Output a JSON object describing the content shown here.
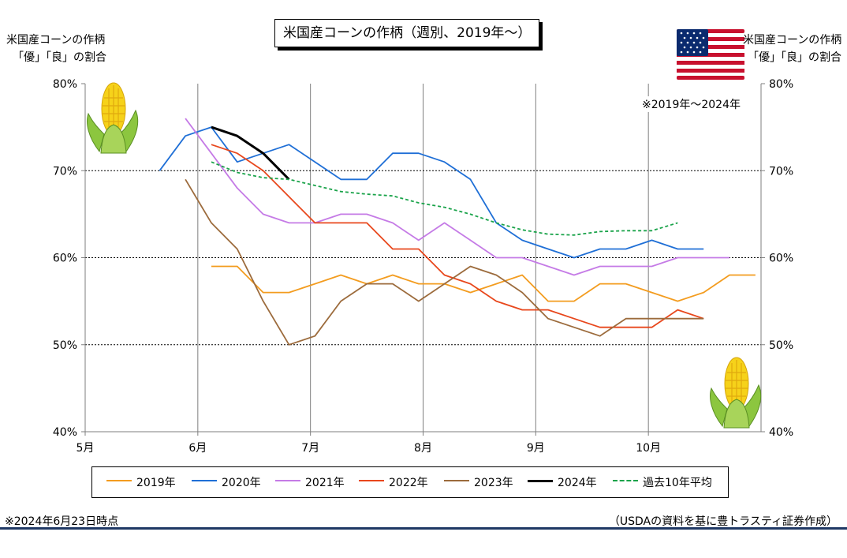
{
  "title": "米国産コーンの作柄（週別、2019年～）",
  "y_axis_title_left": [
    "米国産コーンの作柄",
    "「優」「良」の割合"
  ],
  "y_axis_title_right": [
    "米国産コーンの作柄",
    "「優」「良」の割合"
  ],
  "note_range": "※2019年～2024年",
  "footer_left": "※2024年6月23日時点",
  "footer_right": "（USDAの資料を基に豊トラスティ証券作成）",
  "colors": {
    "2019年": "#f39c1f",
    "2020年": "#1f6fd6",
    "2021年": "#c57be6",
    "2022年": "#e8471c",
    "2023年": "#9c6b3c",
    "2024年": "#000000",
    "過去10年平均": "#1aa34a"
  },
  "icons": [
    "corn-icon",
    "us-flag-icon"
  ],
  "chart_data": {
    "type": "line",
    "title": "米国産コーンの作柄（週別、2019年～）",
    "ylabel": "米国産コーンの作柄「優」「良」の割合",
    "xlabel": "",
    "x_unit": "month (5 = May 1, 5.5 = mid-May)",
    "xlim": [
      5,
      11
    ],
    "ylim": [
      40,
      80
    ],
    "x_ticks": [
      {
        "x": 5,
        "label": "5月"
      },
      {
        "x": 6,
        "label": "6月"
      },
      {
        "x": 7,
        "label": "7月"
      },
      {
        "x": 8,
        "label": "8月"
      },
      {
        "x": 9,
        "label": "9月"
      },
      {
        "x": 10,
        "label": "10月"
      }
    ],
    "y_ticks": [
      {
        "y": 40,
        "label": "40%"
      },
      {
        "y": 50,
        "label": "50%"
      },
      {
        "y": 60,
        "label": "60%"
      },
      {
        "y": 70,
        "label": "70%"
      },
      {
        "y": 80,
        "label": "80%"
      }
    ],
    "grid": {
      "x": true,
      "y": true
    },
    "legend_position": "bottom",
    "series": [
      {
        "name": "2019年",
        "style": "solid",
        "x": [
          6.12,
          6.35,
          6.58,
          6.81,
          7.04,
          7.27,
          7.5,
          7.73,
          7.96,
          8.19,
          8.42,
          8.65,
          8.88,
          9.11,
          9.34,
          9.57,
          9.8,
          10.03,
          10.26,
          10.49,
          10.72,
          10.95
        ],
        "y": [
          59,
          59,
          56,
          56,
          57,
          58,
          57,
          58,
          57,
          57,
          56,
          57,
          58,
          55,
          55,
          57,
          57,
          56,
          55,
          56,
          58,
          58
        ]
      },
      {
        "name": "2020年",
        "style": "solid",
        "x": [
          5.66,
          5.89,
          6.12,
          6.35,
          6.58,
          6.81,
          7.04,
          7.27,
          7.5,
          7.73,
          7.96,
          8.19,
          8.42,
          8.65,
          8.88,
          9.11,
          9.34,
          9.57,
          9.8,
          10.03,
          10.26,
          10.49
        ],
        "y": [
          70,
          74,
          75,
          71,
          72,
          73,
          71,
          69,
          69,
          72,
          72,
          71,
          69,
          64,
          62,
          61,
          60,
          61,
          61,
          62,
          61,
          61
        ]
      },
      {
        "name": "2021年",
        "style": "solid",
        "x": [
          5.89,
          6.12,
          6.35,
          6.58,
          6.81,
          7.04,
          7.27,
          7.5,
          7.73,
          7.96,
          8.19,
          8.42,
          8.65,
          8.88,
          9.11,
          9.34,
          9.57,
          9.8,
          10.03,
          10.26,
          10.49,
          10.72
        ],
        "y": [
          76,
          72,
          68,
          65,
          64,
          64,
          65,
          65,
          64,
          62,
          64,
          62,
          60,
          60,
          59,
          58,
          59,
          59,
          59,
          60,
          60,
          60
        ]
      },
      {
        "name": "2022年",
        "style": "solid",
        "x": [
          6.12,
          6.35,
          6.58,
          6.81,
          7.04,
          7.27,
          7.5,
          7.73,
          7.96,
          8.19,
          8.42,
          8.65,
          8.88,
          9.11,
          9.34,
          9.57,
          9.8,
          10.03,
          10.26,
          10.49
        ],
        "y": [
          73,
          72,
          70,
          67,
          64,
          64,
          64,
          61,
          61,
          58,
          57,
          55,
          54,
          54,
          53,
          52,
          52,
          52,
          54,
          53
        ]
      },
      {
        "name": "2023年",
        "style": "solid",
        "x": [
          5.89,
          6.12,
          6.35,
          6.58,
          6.81,
          7.04,
          7.27,
          7.5,
          7.73,
          7.96,
          8.19,
          8.42,
          8.65,
          8.88,
          9.11,
          9.34,
          9.57,
          9.8,
          10.03,
          10.26,
          10.49
        ],
        "y": [
          69,
          64,
          61,
          55,
          50,
          51,
          55,
          57,
          57,
          55,
          57,
          59,
          58,
          56,
          53,
          52,
          51,
          53,
          53,
          53,
          53
        ]
      },
      {
        "name": "2024年",
        "style": "solid",
        "x": [
          6.12,
          6.35,
          6.58,
          6.81
        ],
        "y": [
          75,
          74,
          72,
          69
        ]
      },
      {
        "name": "過去10年平均",
        "style": "dashed",
        "x": [
          6.12,
          6.35,
          6.58,
          6.81,
          7.04,
          7.27,
          7.5,
          7.73,
          7.96,
          8.19,
          8.42,
          8.65,
          8.88,
          9.11,
          9.34,
          9.57,
          9.8,
          10.03,
          10.26
        ],
        "y": [
          71,
          69.8,
          69.2,
          69,
          68.3,
          67.6,
          67.3,
          67.1,
          66.3,
          65.8,
          65,
          64,
          63.2,
          62.7,
          62.6,
          63,
          63.1,
          63.1,
          64
        ]
      }
    ]
  }
}
